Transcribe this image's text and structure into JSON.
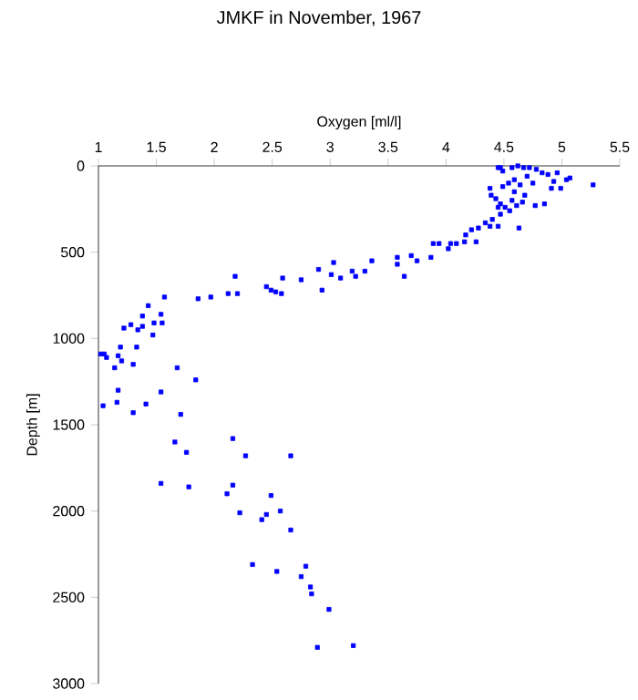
{
  "chart_data": {
    "type": "scatter",
    "title": "JMKF in November, 1967",
    "xlabel": "Oxygen [ml/l]",
    "ylabel": "Depth [m]",
    "xlim": [
      1,
      5.5
    ],
    "xticks": [
      1,
      1.5,
      2,
      2.5,
      3,
      3.5,
      4,
      4.5,
      5,
      5.5
    ],
    "ylim": [
      3000,
      0
    ],
    "yticks": [
      0,
      500,
      1000,
      1500,
      2000,
      2500,
      3000
    ],
    "marker": "square",
    "series": [
      {
        "color": "#0000ff",
        "x": [
          1.54,
          1.78,
          2.16,
          2.11,
          2.49,
          2.22,
          2.41,
          2.45,
          2.57,
          2.66,
          2.33,
          2.54,
          2.79,
          2.75,
          2.83,
          2.84,
          2.99,
          2.89,
          3.2,
          2.18,
          2.59,
          2.75,
          3.01,
          3.09,
          3.22,
          3.64,
          1.57,
          1.86,
          1.97,
          2.12,
          2.2,
          2.45,
          2.49,
          2.53,
          2.58,
          2.93,
          1.43,
          1.22,
          1.28,
          1.34,
          1.38,
          1.38,
          1.48,
          1.55,
          1.54,
          1.47,
          1.02,
          1.05,
          1.07,
          1.17,
          1.19,
          1.2,
          1.33,
          1.14,
          1.3,
          1.68,
          1.84,
          1.17,
          1.54,
          1.16,
          1.04,
          1.41,
          1.3,
          1.71,
          2.16,
          1.66,
          1.76,
          2.27,
          2.66,
          2.9,
          3.03,
          3.19,
          3.3,
          3.36,
          3.58,
          3.58,
          3.7,
          3.75,
          3.87,
          3.89,
          3.94,
          4.02,
          4.04,
          4.09,
          4.16,
          4.17,
          4.26,
          4.22,
          4.28,
          4.34,
          4.38,
          4.4,
          4.45,
          4.38,
          4.47,
          4.45,
          4.43,
          4.47,
          4.51,
          4.55,
          4.57,
          4.61,
          4.66,
          4.68,
          4.77,
          4.63,
          4.85,
          4.91,
          4.99,
          5.04,
          5.07,
          5.27,
          4.47,
          4.49,
          4.45,
          4.57,
          4.62,
          4.67,
          4.72,
          4.78,
          4.83,
          4.88,
          4.7,
          4.59,
          4.54,
          4.75,
          4.64,
          4.93,
          4.49,
          4.59,
          4.96,
          4.39
        ],
        "values": [
          1840,
          1860,
          1850,
          1900,
          1910,
          2010,
          2050,
          2020,
          2000,
          2110,
          2310,
          2350,
          2320,
          2380,
          2440,
          2480,
          2570,
          2790,
          2780,
          640,
          650,
          660,
          630,
          650,
          640,
          640,
          760,
          770,
          760,
          740,
          740,
          700,
          720,
          730,
          740,
          720,
          810,
          940,
          920,
          950,
          870,
          930,
          910,
          910,
          860,
          980,
          1090,
          1090,
          1110,
          1100,
          1050,
          1130,
          1050,
          1170,
          1150,
          1170,
          1240,
          1300,
          1310,
          1370,
          1390,
          1380,
          1430,
          1440,
          1580,
          1600,
          1660,
          1680,
          1680,
          600,
          560,
          610,
          610,
          550,
          530,
          570,
          520,
          550,
          530,
          450,
          450,
          480,
          450,
          450,
          440,
          400,
          440,
          370,
          360,
          330,
          350,
          310,
          350,
          130,
          280,
          240,
          190,
          220,
          240,
          260,
          200,
          230,
          210,
          170,
          230,
          360,
          220,
          130,
          130,
          80,
          70,
          110,
          10,
          30,
          10,
          10,
          0,
          10,
          10,
          20,
          40,
          50,
          60,
          80,
          100,
          100,
          110,
          90,
          120,
          150,
          40,
          170
        ]
      }
    ]
  }
}
